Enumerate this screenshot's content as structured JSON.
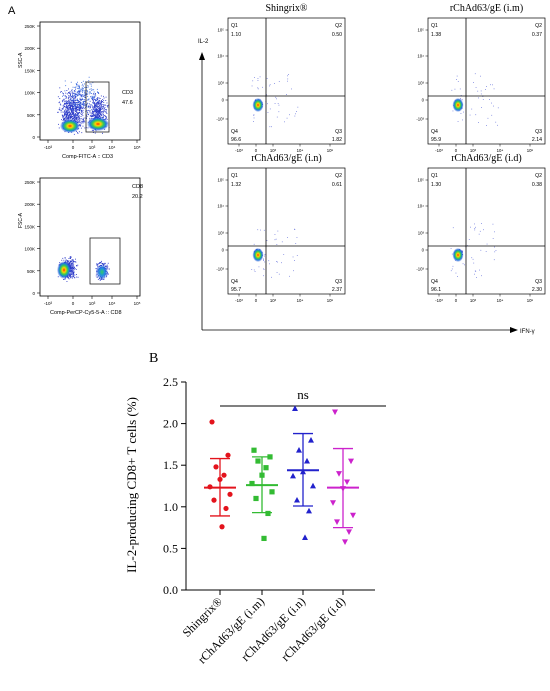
{
  "panel_a_label": "A",
  "panel_b_label": "B",
  "gating": {
    "top": {
      "gate_name": "CD3",
      "gate_value": "47.6",
      "x_axis_label": "Comp-FITC-A :: CD3",
      "y_axis_label": "SSC-A",
      "y_ticks": [
        "250K",
        "200K",
        "150K",
        "100K",
        "50K",
        "0"
      ],
      "x_ticks": [
        "-10³",
        "0",
        "10³",
        "10⁴",
        "10⁵"
      ]
    },
    "bottom": {
      "gate_name": "CD8",
      "gate_value": "20.2",
      "x_axis_label": "Comp-PerCP-Cy5-5-A :: CD8",
      "y_axis_label": "FSC-A",
      "y_ticks": [
        "250K",
        "200K",
        "150K",
        "100K",
        "50K",
        "0"
      ],
      "x_ticks": [
        "-10³",
        "0",
        "10³",
        "10⁴",
        "10⁵"
      ]
    }
  },
  "quadrants": {
    "y_axis_label": "IL-2",
    "x_axis_label": "IFN-γ",
    "y_ticks": [
      "10⁵",
      "10⁴",
      "10³",
      "0",
      "-10³"
    ],
    "x_ticks": [
      "-10³",
      "0",
      "10³",
      "10⁴",
      "10⁵"
    ],
    "plots": [
      {
        "title": "Shingrix®",
        "q1_label": "Q1",
        "q1": "1.10",
        "q2_label": "Q2",
        "q2": "0.50",
        "q3_label": "Q3",
        "q3": "1.82",
        "q4_label": "Q4",
        "q4": "96.6"
      },
      {
        "title": "rChAd63/gE  (i.m)",
        "q1_label": "Q1",
        "q1": "1.38",
        "q2_label": "Q2",
        "q2": "0.37",
        "q3_label": "Q3",
        "q3": "2.14",
        "q4_label": "Q4",
        "q4": "95.9"
      },
      {
        "title": "rChAd63/gE  (i.n)",
        "q1_label": "Q1",
        "q1": "1.32",
        "q2_label": "Q2",
        "q2": "0.61",
        "q3_label": "Q3",
        "q3": "2.37",
        "q4_label": "Q4",
        "q4": "95.7"
      },
      {
        "title": "rChAd63/gE  (i.d)",
        "q1_label": "Q1",
        "q1": "1.30",
        "q2_label": "Q2",
        "q2": "0.38",
        "q3_label": "Q3",
        "q3": "2.30",
        "q4_label": "Q4",
        "q4": "96.1"
      }
    ]
  },
  "chart_data": {
    "type": "scatter",
    "title": "",
    "ylabel": "IL-2-producing CD8+ T cells (%)",
    "xlabel": "",
    "ylim": [
      0.0,
      2.5
    ],
    "yticks": [
      "0.0",
      "0.5",
      "1.0",
      "1.5",
      "2.0",
      "2.5"
    ],
    "significance": "ns",
    "categories": [
      "Shingrix®",
      "rChAd63/gE (i.m)",
      "rChAd63/gE (i.n)",
      "rChAd63/gE (i.d)"
    ],
    "colors": [
      "#e3131c",
      "#33bb33",
      "#2222cc",
      "#cc22cc"
    ],
    "markers": [
      "circle",
      "square",
      "triangle-up",
      "triangle-down"
    ],
    "mean": [
      1.23,
      1.26,
      1.44,
      1.23
    ],
    "sd_upper": [
      1.58,
      1.6,
      1.88,
      1.7
    ],
    "sd_lower": [
      0.89,
      0.93,
      1.01,
      0.75
    ],
    "points": [
      [
        2.02,
        1.62,
        1.48,
        1.38,
        1.33,
        1.24,
        1.15,
        1.08,
        0.98,
        0.76
      ],
      [
        1.68,
        1.6,
        1.55,
        1.47,
        1.38,
        1.28,
        1.18,
        1.1,
        0.92,
        0.62
      ],
      [
        2.18,
        1.8,
        1.68,
        1.55,
        1.42,
        1.37,
        1.25,
        1.08,
        0.95,
        0.63
      ],
      [
        2.14,
        1.55,
        1.4,
        1.3,
        1.22,
        1.05,
        0.9,
        0.82,
        0.7,
        0.58
      ]
    ]
  }
}
